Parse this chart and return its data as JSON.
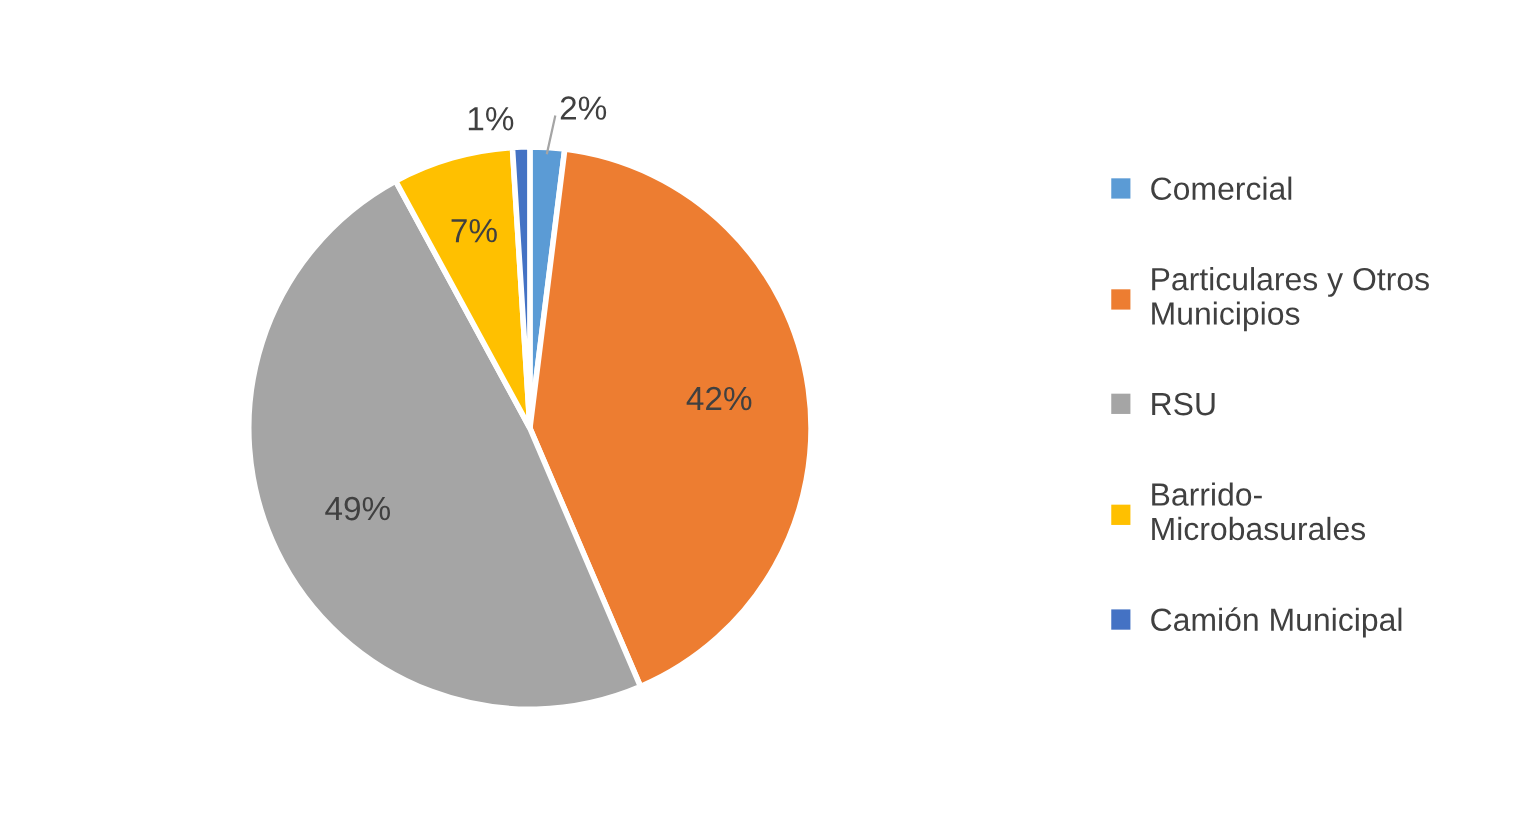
{
  "chart_data": {
    "type": "pie",
    "categories": [
      "Comercial",
      "Particulares y Otros Municipios",
      "RSU",
      "Barrido-Microbasurales",
      "Camión Municipal"
    ],
    "values": [
      2,
      42,
      49,
      7,
      1
    ],
    "colors": [
      "#5b9bd5",
      "#ed7d31",
      "#a5a5a5",
      "#ffc000",
      "#4472c4"
    ],
    "value_labels": [
      "2%",
      "42%",
      "49%",
      "7%",
      "1%"
    ],
    "legend": "right"
  }
}
